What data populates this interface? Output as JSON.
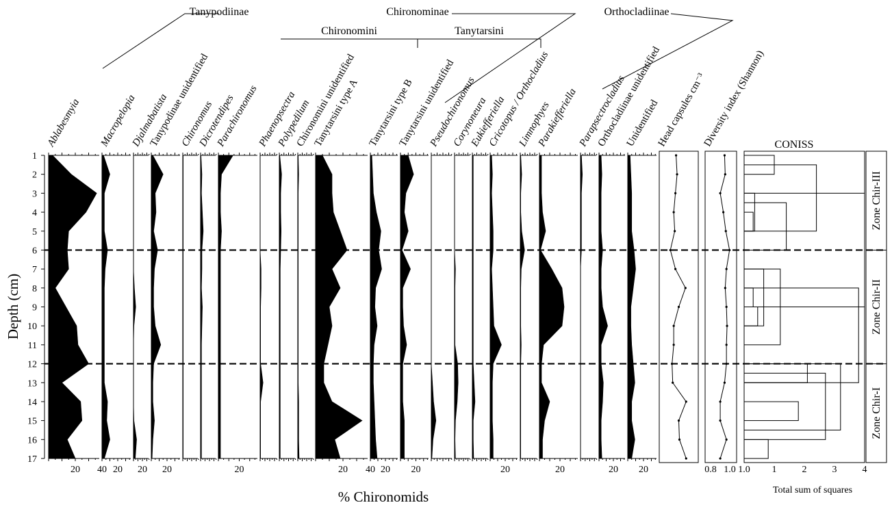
{
  "chart_data": {
    "type": "area",
    "depths": [
      1,
      2,
      3,
      4,
      5,
      6,
      7,
      8,
      9,
      10,
      11,
      12,
      13,
      14,
      15,
      16,
      17
    ],
    "ylabel": "Depth (cm)",
    "xlabel": "% Chironomids",
    "series": [
      {
        "name": "Ablabesmyia",
        "max": 40,
        "ticks": [
          "20",
          "40"
        ],
        "values": [
          3,
          17,
          36,
          28,
          15,
          14,
          15,
          5,
          13,
          21,
          22,
          30,
          10,
          24,
          25,
          14,
          20
        ]
      },
      {
        "name": "Macropelopia",
        "max": 40,
        "ticks": [
          "20"
        ],
        "values": [
          2,
          10,
          3,
          3,
          3,
          7,
          4,
          3,
          3,
          3,
          3,
          3,
          3,
          7,
          6,
          10,
          3
        ]
      },
      {
        "name": "Djalmabatista",
        "max": 40,
        "ticks": [
          "20"
        ],
        "values": [
          0,
          0,
          0,
          0,
          0,
          0,
          0,
          2,
          5,
          1,
          0,
          0,
          0,
          0,
          1,
          7,
          4
        ]
      },
      {
        "name": "Tanypodinae unidentified",
        "max": 40,
        "ticks": [
          "20"
        ],
        "values": [
          2,
          15,
          5,
          6,
          3,
          8,
          4,
          3,
          3,
          5,
          12,
          3,
          2,
          2,
          4,
          2,
          1
        ]
      },
      {
        "name": "Chironomus",
        "max": 40,
        "ticks": [],
        "values": [
          1,
          1,
          1,
          1,
          1,
          1,
          1,
          1,
          1,
          1,
          1,
          1,
          1,
          1,
          1,
          1,
          1
        ]
      },
      {
        "name": "Dicrotendipes",
        "max": 40,
        "ticks": [],
        "values": [
          1,
          3,
          2,
          4,
          6,
          3,
          3,
          2,
          4,
          3,
          2,
          2,
          2,
          2,
          2,
          2,
          2
        ]
      },
      {
        "name": "Parachironomus",
        "max": 40,
        "ticks": [
          "20"
        ],
        "values": [
          14,
          3,
          2,
          2,
          3,
          2,
          2,
          2,
          2,
          2,
          2,
          2,
          2,
          2,
          2,
          2,
          2
        ]
      },
      {
        "name": "Phaenopsectra",
        "max": 40,
        "ticks": [],
        "values": [
          0,
          0,
          0,
          0,
          0,
          0,
          2,
          2,
          1,
          1,
          1,
          1,
          6,
          1,
          1,
          1,
          1
        ]
      },
      {
        "name": "Polypedilum",
        "max": 40,
        "ticks": [],
        "values": [
          1,
          5,
          3,
          3,
          4,
          3,
          2,
          2,
          2,
          2,
          2,
          2,
          2,
          2,
          2,
          2,
          2
        ]
      },
      {
        "name": "Chironomini unidentified",
        "max": 40,
        "ticks": [],
        "values": [
          1,
          2,
          1,
          1,
          1,
          1,
          1,
          1,
          1,
          1,
          1,
          1,
          1,
          2,
          2,
          2,
          3
        ]
      },
      {
        "name": "Tanytarsini type A",
        "max": 40,
        "ticks": [
          "20",
          "40"
        ],
        "values": [
          5,
          12,
          12,
          13,
          18,
          23,
          12,
          18,
          10,
          12,
          9,
          6,
          6,
          12,
          34,
          14,
          18
        ]
      },
      {
        "name": "Tanytarsini type B",
        "max": 40,
        "ticks": [
          "20"
        ],
        "values": [
          2,
          3,
          4,
          8,
          14,
          11,
          15,
          7,
          6,
          9,
          5,
          4,
          4,
          5,
          6,
          7,
          9
        ]
      },
      {
        "name": "Tanytarsini unidentified",
        "max": 40,
        "ticks": [
          "20"
        ],
        "values": [
          10,
          17,
          7,
          5,
          10,
          2,
          13,
          3,
          3,
          4,
          8,
          3,
          3,
          3,
          5,
          5,
          5
        ]
      },
      {
        "name": "Pseudochironomus",
        "max": 40,
        "ticks": [],
        "values": [
          0,
          0,
          0,
          0,
          0,
          0,
          0,
          0,
          0,
          0,
          0,
          0,
          2,
          4,
          8,
          3,
          1
        ]
      },
      {
        "name": "Corynoneura",
        "max": 40,
        "ticks": [],
        "values": [
          0,
          0,
          0,
          0,
          0,
          0,
          2,
          1,
          1,
          1,
          1,
          7,
          8,
          6,
          2,
          1,
          2
        ]
      },
      {
        "name": "Eukiefferiella",
        "max": 40,
        "ticks": [],
        "values": [
          2,
          2,
          2,
          2,
          2,
          2,
          2,
          2,
          2,
          2,
          2,
          2,
          4,
          6,
          2,
          2,
          3
        ]
      },
      {
        "name": "Cricotopus / Orthocladius",
        "max": 40,
        "ticks": [
          "20"
        ],
        "values": [
          2,
          3,
          2,
          3,
          4,
          4,
          2,
          3,
          4,
          5,
          15,
          4,
          3,
          3,
          3,
          4,
          4
        ]
      },
      {
        "name": "Limnophyes",
        "max": 40,
        "ticks": [],
        "values": [
          1,
          3,
          1,
          1,
          3,
          9,
          2,
          1,
          1,
          1,
          2,
          1,
          1,
          1,
          1,
          1,
          1
        ]
      },
      {
        "name": "Parakiefferiella",
        "max": 40,
        "ticks": [
          "20"
        ],
        "values": [
          2,
          2,
          2,
          3,
          6,
          1,
          12,
          22,
          24,
          22,
          4,
          2,
          2,
          10,
          5,
          3,
          3
        ]
      },
      {
        "name": "Parapsectrocladius",
        "max": 40,
        "ticks": [],
        "values": [
          2,
          4,
          2,
          2,
          2,
          2,
          0,
          0,
          0,
          0,
          0,
          0,
          0,
          0,
          0,
          0,
          0
        ]
      },
      {
        "name": "Orthocladiinae unidentified",
        "max": 40,
        "ticks": [
          "20"
        ],
        "values": [
          3,
          4,
          3,
          3,
          3,
          5,
          3,
          3,
          5,
          12,
          3,
          3,
          6,
          5,
          3,
          3,
          4
        ]
      },
      {
        "name": "Unidentified",
        "max": 40,
        "ticks": [
          "20"
        ],
        "values": [
          3,
          4,
          5,
          5,
          5,
          8,
          10,
          7,
          4,
          4,
          5,
          7,
          9,
          5,
          5,
          9,
          5
        ]
      },
      {
        "name": "Head capsules cm⁻³",
        "type": "line",
        "ticks": [],
        "values": [
          0.42,
          0.45,
          0.4,
          0.35,
          0.38,
          0.25,
          0.4,
          0.7,
          0.5,
          0.35,
          0.35,
          0.3,
          0.32,
          0.72,
          0.5,
          0.52,
          0.72
        ]
      },
      {
        "name": "Diversity index (Shannon)",
        "type": "line",
        "ticks": [
          "0.8",
          "1.0"
        ],
        "values": [
          0.87,
          0.88,
          0.8,
          0.85,
          0.89,
          0.95,
          0.9,
          0.88,
          0.9,
          0.91,
          0.9,
          0.9,
          0.87,
          0.8,
          0.8,
          0.9,
          0.8
        ]
      }
    ],
    "groups": [
      {
        "label": "Tanypodiinae"
      },
      {
        "label": "Chironominae"
      },
      {
        "label": "Chironomini"
      },
      {
        "label": "Tanytarsini"
      },
      {
        "label": "Orthocladiinae"
      }
    ],
    "zone_boundaries": [
      6,
      12
    ],
    "coniss": {
      "title": "CONISS",
      "xlabel": "Total sum of squares",
      "ticks": [
        "1.0",
        "1",
        "2",
        "3",
        "4"
      ],
      "zones": [
        "Zone Chir-III",
        "Zone Chir-II",
        "Zone Chir-I"
      ]
    }
  }
}
